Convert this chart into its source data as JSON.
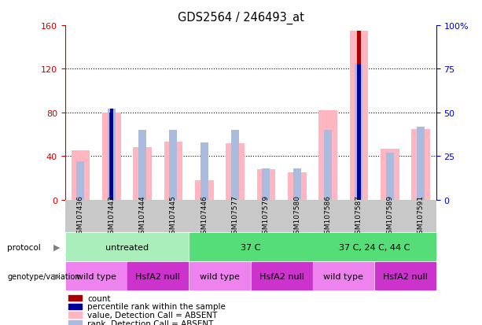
{
  "title": "GDS2564 / 246493_at",
  "samples": [
    "GSM107436",
    "GSM107443",
    "GSM107444",
    "GSM107445",
    "GSM107446",
    "GSM107577",
    "GSM107579",
    "GSM107580",
    "GSM107586",
    "GSM107587",
    "GSM107589",
    "GSM107591"
  ],
  "value_bars": [
    45,
    80,
    48,
    53,
    18,
    52,
    28,
    25,
    82,
    155,
    47,
    65
  ],
  "rank_bars": [
    22,
    52,
    40,
    40,
    33,
    40,
    18,
    18,
    40,
    78,
    27,
    42
  ],
  "count_bars": [
    null,
    80,
    null,
    null,
    null,
    null,
    null,
    null,
    null,
    155,
    null,
    null
  ],
  "percentile_bars": [
    null,
    52,
    null,
    null,
    null,
    null,
    null,
    null,
    null,
    78,
    null,
    null
  ],
  "left_ylim": [
    0,
    160
  ],
  "right_ylim": [
    0,
    100
  ],
  "left_yticks": [
    0,
    40,
    80,
    120,
    160
  ],
  "right_yticks": [
    0,
    25,
    50,
    75,
    100
  ],
  "right_yticklabels": [
    "0",
    "25",
    "50",
    "75",
    "100%"
  ],
  "gridlines": [
    40,
    80,
    120
  ],
  "protocol_groups": [
    {
      "label": "untreated",
      "start": 0,
      "end": 4,
      "color": "#AAEEBB"
    },
    {
      "label": "37 C",
      "start": 4,
      "end": 8,
      "color": "#55DD77"
    },
    {
      "label": "37 C, 24 C, 44 C",
      "start": 8,
      "end": 12,
      "color": "#55DD77"
    }
  ],
  "genotype_groups": [
    {
      "label": "wild type",
      "start": 0,
      "end": 2,
      "color": "#EE82EE"
    },
    {
      "label": "HsfA2 null",
      "start": 2,
      "end": 4,
      "color": "#CC33CC"
    },
    {
      "label": "wild type",
      "start": 4,
      "end": 6,
      "color": "#EE82EE"
    },
    {
      "label": "HsfA2 null",
      "start": 6,
      "end": 8,
      "color": "#CC33CC"
    },
    {
      "label": "wild type",
      "start": 8,
      "end": 10,
      "color": "#EE82EE"
    },
    {
      "label": "HsfA2 null",
      "start": 10,
      "end": 12,
      "color": "#CC33CC"
    }
  ],
  "color_value_bar": "#FFB6C1",
  "color_rank_bar": "#AABBDD",
  "color_count_bar": "#AA0000",
  "color_percentile_bar": "#000099",
  "left_axis_color": "#CC0000",
  "right_axis_color": "#0000CC",
  "sample_bg_color": "#C8C8C8",
  "legend_items": [
    {
      "color": "#AA0000",
      "label": "count"
    },
    {
      "color": "#000099",
      "label": "percentile rank within the sample"
    },
    {
      "color": "#FFB6C1",
      "label": "value, Detection Call = ABSENT"
    },
    {
      "color": "#AABBDD",
      "label": "rank, Detection Call = ABSENT"
    }
  ]
}
